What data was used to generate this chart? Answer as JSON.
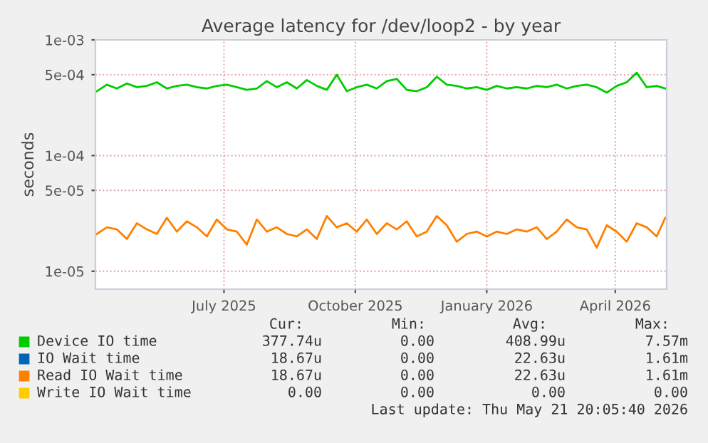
{
  "chart_data": {
    "type": "line",
    "title": "Average latency for /dev/loop2 - by year",
    "ylabel": "seconds",
    "log": "y",
    "grid": true,
    "legend": "bottom",
    "marker": "none",
    "line_style": "solid",
    "x": [
      "2025-04-18",
      "2025-04-25",
      "2025-05-02",
      "2025-05-09",
      "2025-05-16",
      "2025-05-23",
      "2025-05-30",
      "2025-06-06",
      "2025-06-13",
      "2025-06-20",
      "2025-06-27",
      "2025-07-04",
      "2025-07-11",
      "2025-07-18",
      "2025-07-25",
      "2025-08-01",
      "2025-08-08",
      "2025-08-15",
      "2025-08-22",
      "2025-08-29",
      "2025-09-05",
      "2025-09-12",
      "2025-09-19",
      "2025-09-26",
      "2025-10-03",
      "2025-10-10",
      "2025-10-17",
      "2025-10-24",
      "2025-10-31",
      "2025-11-07",
      "2025-11-14",
      "2025-11-21",
      "2025-11-28",
      "2025-12-05",
      "2025-12-12",
      "2025-12-19",
      "2025-12-26",
      "2026-01-02",
      "2026-01-09",
      "2026-01-16",
      "2026-01-23",
      "2026-01-30",
      "2026-02-06",
      "2026-02-13",
      "2026-02-20",
      "2026-02-27",
      "2026-03-06",
      "2026-03-13",
      "2026-03-20",
      "2026-03-27",
      "2026-04-03",
      "2026-04-10",
      "2026-04-17",
      "2026-04-24",
      "2026-05-01",
      "2026-05-08",
      "2026-05-15",
      "2026-05-21"
    ],
    "series": [
      {
        "name": "Device IO time",
        "color": "#00cc00",
        "values": [
          0.00036,
          0.00041,
          0.00038,
          0.00042,
          0.00039,
          0.0004,
          0.00043,
          0.00038,
          0.0004,
          0.00041,
          0.00039,
          0.00038,
          0.0004,
          0.00041,
          0.00039,
          0.00037,
          0.00038,
          0.00044,
          0.00039,
          0.00043,
          0.00038,
          0.00045,
          0.0004,
          0.00037,
          0.0005,
          0.00036,
          0.00039,
          0.00041,
          0.00038,
          0.00044,
          0.00046,
          0.00037,
          0.00036,
          0.00039,
          0.00048,
          0.00041,
          0.0004,
          0.00038,
          0.00039,
          0.00037,
          0.0004,
          0.00038,
          0.00039,
          0.00038,
          0.0004,
          0.00039,
          0.00041,
          0.00038,
          0.0004,
          0.00041,
          0.00039,
          0.00035,
          0.0004,
          0.00043,
          0.00052,
          0.00039,
          0.0004,
          0.00038
        ]
      },
      {
        "name": "IO Wait time",
        "color": "#0066b3",
        "values": [
          null,
          null,
          null,
          null,
          null,
          null,
          null,
          null,
          null,
          null,
          null,
          null,
          null,
          null,
          null,
          null,
          null,
          null,
          null,
          null,
          null,
          null,
          null,
          null,
          null,
          null,
          null,
          null,
          null,
          null,
          null,
          null,
          null,
          null,
          null,
          null,
          null,
          null,
          null,
          null,
          null,
          null,
          null,
          null,
          null,
          null,
          null,
          null,
          null,
          null,
          null,
          null,
          null,
          null,
          null,
          null,
          null,
          null
        ]
      },
      {
        "name": "Read IO Wait time",
        "color": "#ff8000",
        "values": [
          2.1e-05,
          2.4e-05,
          2.3e-05,
          1.9e-05,
          2.6e-05,
          2.3e-05,
          2.1e-05,
          2.9e-05,
          2.2e-05,
          2.7e-05,
          2.4e-05,
          2e-05,
          2.8e-05,
          2.3e-05,
          2.2e-05,
          1.7e-05,
          2.8e-05,
          2.2e-05,
          2.4e-05,
          2.1e-05,
          2e-05,
          2.3e-05,
          1.9e-05,
          3e-05,
          2.4e-05,
          2.6e-05,
          2.2e-05,
          2.8e-05,
          2.1e-05,
          2.6e-05,
          2.3e-05,
          2.7e-05,
          2e-05,
          2.2e-05,
          3e-05,
          2.5e-05,
          1.8e-05,
          2.1e-05,
          2.2e-05,
          2e-05,
          2.2e-05,
          2.1e-05,
          2.3e-05,
          2.2e-05,
          2.4e-05,
          1.9e-05,
          2.2e-05,
          2.8e-05,
          2.4e-05,
          2.3e-05,
          1.6e-05,
          2.5e-05,
          2.2e-05,
          1.8e-05,
          2.6e-05,
          2.4e-05,
          2e-05,
          2.9e-05
        ]
      },
      {
        "name": "Write IO Wait time",
        "color": "#ffcc00",
        "values": [
          null,
          null,
          null,
          null,
          null,
          null,
          null,
          null,
          null,
          null,
          null,
          null,
          null,
          null,
          null,
          null,
          null,
          null,
          null,
          null,
          null,
          null,
          null,
          null,
          null,
          null,
          null,
          null,
          null,
          null,
          null,
          null,
          null,
          null,
          null,
          null,
          null,
          null,
          null,
          null,
          null,
          null,
          null,
          null,
          null,
          null,
          null,
          null,
          null,
          null,
          null,
          null,
          null,
          null,
          null,
          null,
          null,
          null
        ]
      }
    ],
    "xlim": [
      "2025-04-17",
      "2026-05-22"
    ],
    "xticks": [
      {
        "value": "2025-07-16",
        "label": "July 2025"
      },
      {
        "value": "2025-10-16",
        "label": "October 2025"
      },
      {
        "value": "2026-01-16",
        "label": "January 2026"
      },
      {
        "value": "2026-04-16",
        "label": "April 2026"
      }
    ],
    "ylim": [
      7e-06,
      0.001
    ],
    "yticks": [
      {
        "value": 1e-05,
        "label": "1e-05"
      },
      {
        "value": 5e-05,
        "label": "5e-05"
      },
      {
        "value": 0.0001,
        "label": "1e-04"
      },
      {
        "value": 0.0005,
        "label": "5e-04"
      },
      {
        "value": 0.001,
        "label": "1e-03"
      }
    ],
    "annotations": [
      "Cur:",
      "Min:",
      "Avg:",
      "Max:",
      "377.74u",
      "0.00",
      "408.99u",
      "7.57m",
      "18.67u",
      "0.00",
      "22.63u",
      "1.61m",
      "18.67u",
      "0.00",
      "22.63u",
      "1.61m",
      "0.00",
      "0.00",
      "0.00",
      "0.00",
      "Last update: Thu May 21 20:05:40 2026"
    ]
  }
}
